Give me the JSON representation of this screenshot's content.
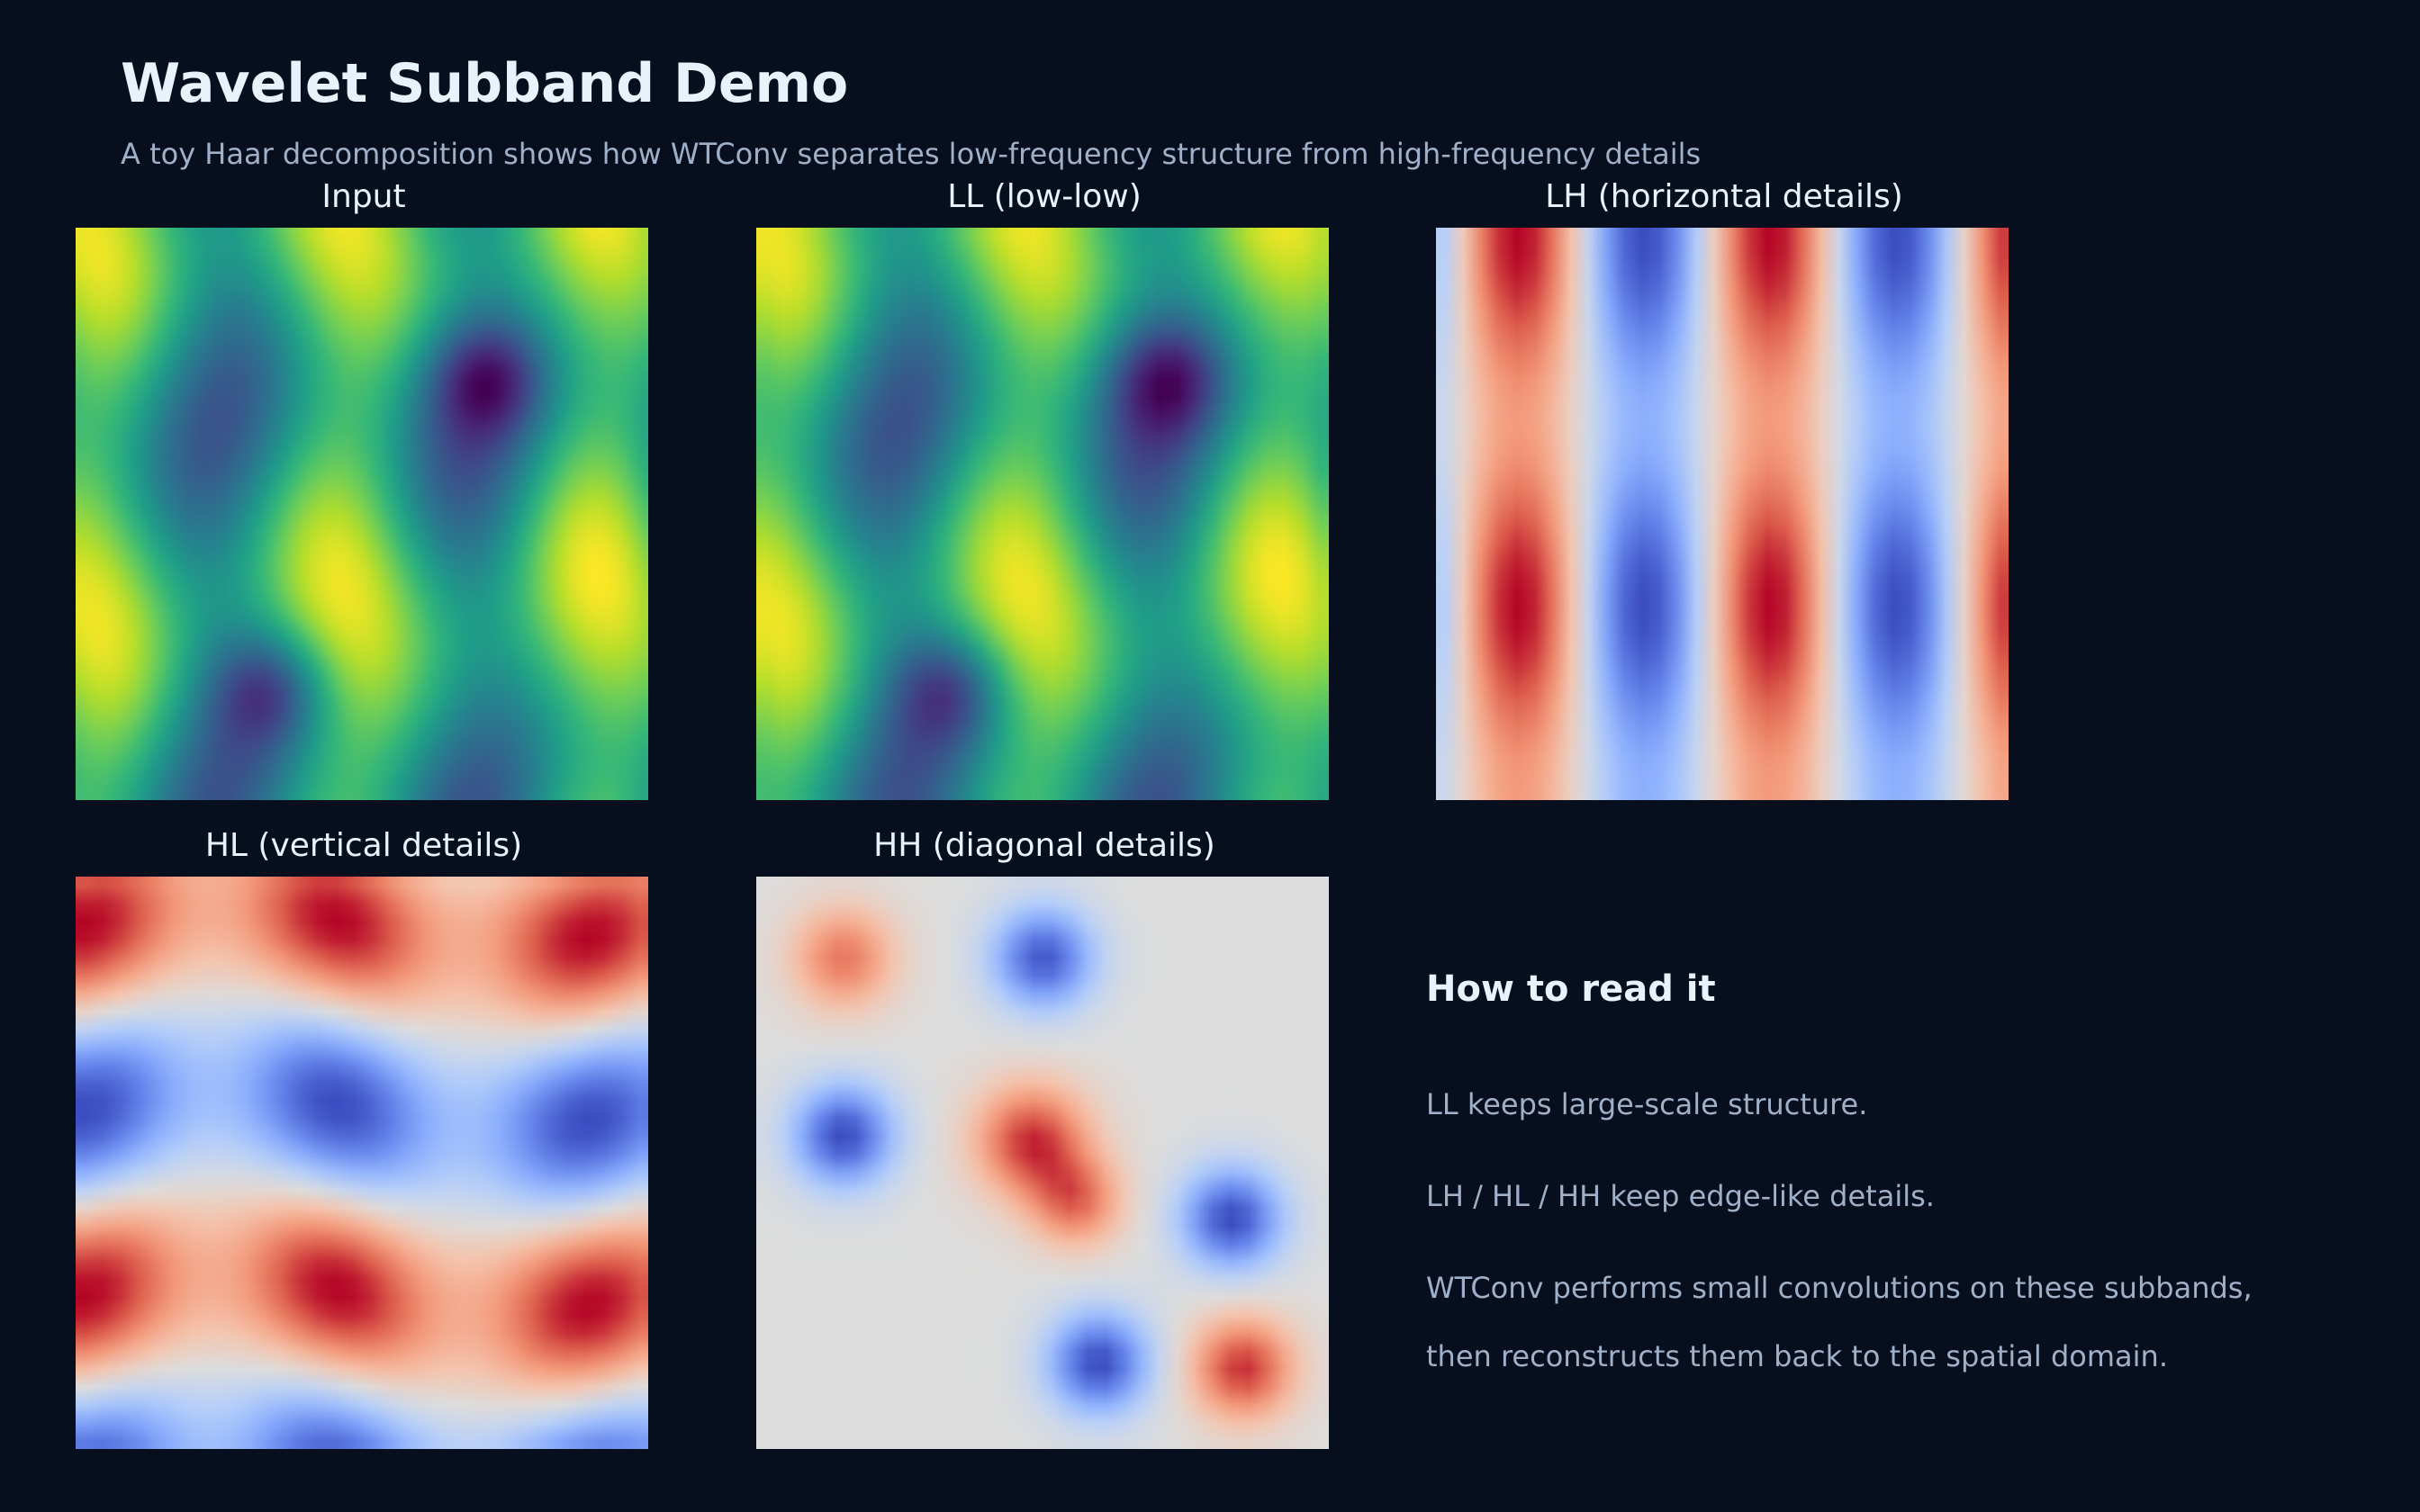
{
  "title": "Wavelet Subband Demo",
  "subtitle": "A toy Haar decomposition shows how WTConv separates low-frequency structure from high-frequency details",
  "panels": {
    "input": {
      "label": "Input",
      "colormap": "viridis"
    },
    "ll": {
      "label": "LL (low-low)",
      "colormap": "viridis"
    },
    "lh": {
      "label": "LH (horizontal details)",
      "colormap": "coolwarm"
    },
    "hl": {
      "label": "HL (vertical details)",
      "colormap": "coolwarm"
    },
    "hh": {
      "label": "HH (diagonal details)",
      "colormap": "coolwarm"
    }
  },
  "notes": {
    "heading": "How to read it",
    "line1": "LL keeps large-scale structure.",
    "line2": "LH / HL / HH keep edge-like details.",
    "line3": "WTConv performs small convolutions on these subbands,",
    "line4": "then reconstructs them back to the spatial domain."
  },
  "colors": {
    "background": "#070f1e",
    "title": "#e9f1fb",
    "muted_text": "#9fb0c8"
  }
}
